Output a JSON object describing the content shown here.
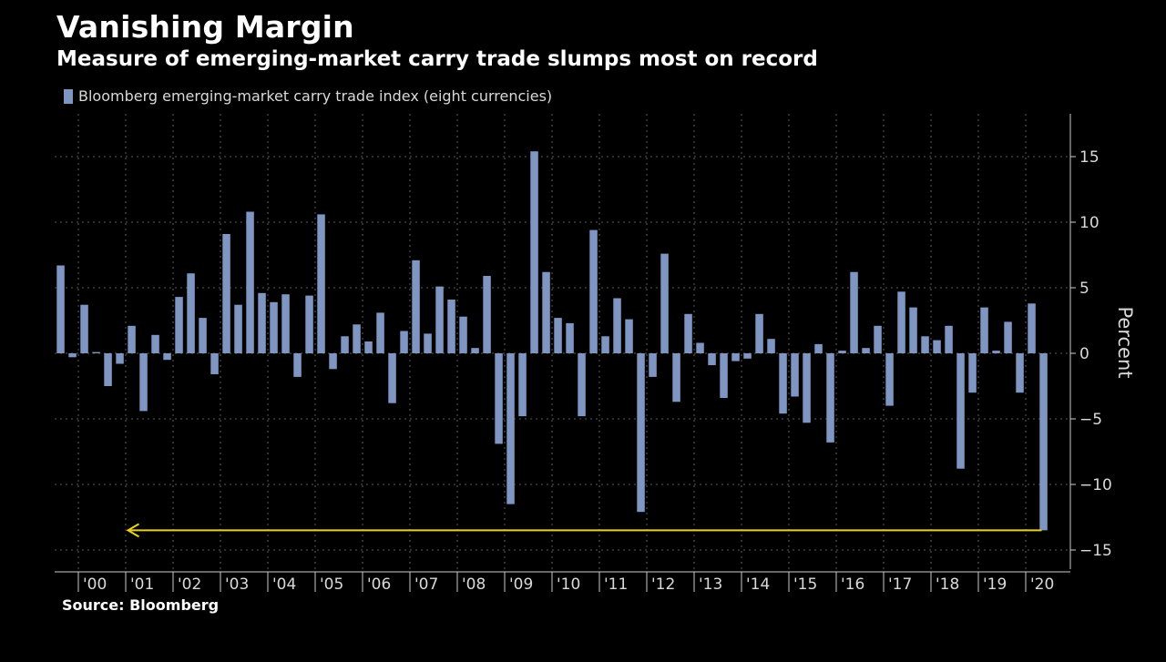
{
  "header": {
    "title": "Vanishing Margin",
    "subtitle": "Measure of emerging-market carry trade slumps most on record"
  },
  "source": "Source: Bloomberg",
  "colors": {
    "bar": "#7f96c2",
    "arrow": "#e6d21e",
    "grid": "#5a5a5a",
    "axis": "#cccccc",
    "background": "#000000"
  },
  "chart_data": {
    "type": "bar",
    "legend": [
      "Bloomberg emerging-market carry trade index (eight currencies)"
    ],
    "legend_position": "top-left",
    "ylabel": "Percent",
    "y_axis_side": "right",
    "ylim": [
      -16,
      18
    ],
    "yticks": [
      15,
      10,
      5,
      0,
      -5,
      -10,
      -15
    ],
    "grid": true,
    "x_tick_labels": [
      "'00",
      "'01",
      "'02",
      "'03",
      "'04",
      "'05",
      "'06",
      "'07",
      "'08",
      "'09",
      "'10",
      "'11",
      "'12",
      "'13",
      "'14",
      "'15",
      "'16",
      "'17",
      "'18",
      "'19",
      "'20"
    ],
    "series": [
      {
        "frequency": "quarterly",
        "start": "1999 Q3",
        "values": [
          6.7,
          -0.3,
          3.7,
          0.1,
          -2.5,
          -0.8,
          2.1,
          -4.4,
          1.4,
          -0.5,
          4.3,
          6.1,
          2.7,
          -1.6,
          9.1,
          3.7,
          10.8,
          4.6,
          3.9,
          4.5,
          -1.8,
          4.4,
          10.6,
          -1.2,
          1.3,
          2.2,
          0.9,
          3.1,
          -3.8,
          1.7,
          7.1,
          1.5,
          5.1,
          4.1,
          2.8,
          0.4,
          5.9,
          -6.9,
          -11.5,
          -4.8,
          15.4,
          6.2,
          2.7,
          2.3,
          -4.8,
          9.4,
          1.3,
          4.2,
          2.6,
          -12.1,
          -1.8,
          7.6,
          -3.7,
          3.0,
          0.8,
          -0.9,
          -3.4,
          -0.6,
          -0.4,
          3.0,
          1.1,
          -4.6,
          -3.3,
          -5.3,
          0.7,
          -6.8,
          0.2,
          6.2,
          0.4,
          2.1,
          -4.0,
          4.7,
          3.5,
          1.3,
          1.0,
          2.1,
          -8.8,
          -3.0,
          3.5,
          0.2,
          2.4,
          -3.0,
          3.8,
          -13.5
        ]
      }
    ],
    "annotation": {
      "type": "horizontal-arrow",
      "y": -13.5,
      "direction": "left",
      "from_index": 83,
      "to_index": 6
    }
  }
}
